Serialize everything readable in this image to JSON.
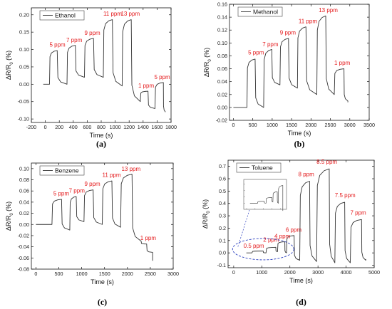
{
  "chart_data": [
    {
      "type": "line",
      "panel_label": "(a)",
      "ylabel": "ΔR/R",
      "ylabel_sub": "0",
      "ylabel_unit": " (%)",
      "xlabel": "Time (s)",
      "xlim": [
        -200,
        1800
      ],
      "ylim": [
        -0.11,
        0.22
      ],
      "xticks": [
        -200,
        0,
        200,
        400,
        600,
        800,
        1000,
        1200,
        1400,
        1600,
        1800
      ],
      "yticks": [
        -0.1,
        -0.05,
        0.0,
        0.05,
        0.1,
        0.15,
        0.2
      ],
      "ytick_labels": [
        "-0.10",
        "-0.05",
        "0.00",
        "0.05",
        "0.10",
        "0.15",
        "0.20"
      ],
      "legend": "Ethanol",
      "color": "#e41a1c",
      "series": [
        {
          "name": "Ethanol",
          "baseline_start": [
            -30,
            0.0
          ],
          "pulses": [
            {
              "on": 60,
              "off": 170,
              "peak": 0.097,
              "low": 0.0
            },
            {
              "on": 310,
              "off": 430,
              "peak": 0.112,
              "low": 0.02
            },
            {
              "on": 560,
              "off": 690,
              "peak": 0.132,
              "low": 0.02
            },
            {
              "on": 830,
              "off": 960,
              "peak": 0.186,
              "low": -0.005
            },
            {
              "on": 1100,
              "off": 1230,
              "peak": 0.186,
              "low": -0.05
            },
            {
              "on": 1360,
              "off": 1470,
              "peak": -0.02,
              "low": -0.07
            },
            {
              "on": 1570,
              "off": 1690,
              "peak": 0.005,
              "low": -0.08
            }
          ],
          "end": [
            1720,
            -0.08
          ]
        }
      ],
      "annotations": [
        {
          "text": "5 ppm",
          "x": 60,
          "y": 0.108
        },
        {
          "text": "7 ppm",
          "x": 300,
          "y": 0.122
        },
        {
          "text": "9 ppm",
          "x": 560,
          "y": 0.142
        },
        {
          "text": "11 ppm",
          "x": 830,
          "y": 0.197
        },
        {
          "text": "13 ppm",
          "x": 1080,
          "y": 0.197
        },
        {
          "text": "1 ppm",
          "x": 1330,
          "y": -0.01
        },
        {
          "text": "5 ppm",
          "x": 1560,
          "y": 0.015
        }
      ]
    },
    {
      "type": "line",
      "panel_label": "(b)",
      "ylabel": "ΔR/R",
      "ylabel_sub": "0",
      "ylabel_unit": " (%)",
      "xlabel": "Time (s)",
      "xlim": [
        -100,
        3500
      ],
      "ylim": [
        -0.02,
        0.16
      ],
      "xticks": [
        0,
        500,
        1000,
        1500,
        2000,
        2500,
        3000,
        3500
      ],
      "yticks": [
        -0.02,
        0.0,
        0.02,
        0.04,
        0.06,
        0.08,
        0.1,
        0.12,
        0.14,
        0.16
      ],
      "ytick_labels": [
        "-0.02",
        "0.00",
        "0.02",
        "0.04",
        "0.06",
        "0.08",
        "0.10",
        "0.12",
        "0.14",
        "0.16"
      ],
      "legend": "Methanol",
      "color": "#e41a1c",
      "series": [
        {
          "name": "Methanol",
          "baseline_start": [
            0,
            0.0
          ],
          "pulses": [
            {
              "on": 350,
              "off": 560,
              "peak": 0.075,
              "low": 0.0
            },
            {
              "on": 780,
              "off": 990,
              "peak": 0.09,
              "low": 0.035
            },
            {
              "on": 1200,
              "off": 1420,
              "peak": 0.107,
              "low": 0.03
            },
            {
              "on": 1650,
              "off": 1870,
              "peak": 0.125,
              "low": 0.02
            },
            {
              "on": 2150,
              "off": 2380,
              "peak": 0.142,
              "low": 0.02
            },
            {
              "on": 2600,
              "off": 2850,
              "peak": 0.06,
              "low": 0.01
            }
          ],
          "end": [
            2950,
            0.008
          ]
        }
      ],
      "annotations": [
        {
          "text": "5 ppm",
          "x": 380,
          "y": 0.082
        },
        {
          "text": "7 ppm",
          "x": 750,
          "y": 0.095
        },
        {
          "text": "9 ppm",
          "x": 1200,
          "y": 0.113
        },
        {
          "text": "11 ppm",
          "x": 1680,
          "y": 0.131
        },
        {
          "text": "13 ppm",
          "x": 2200,
          "y": 0.148
        },
        {
          "text": "1 ppm",
          "x": 2600,
          "y": 0.066
        }
      ]
    },
    {
      "type": "line",
      "panel_label": "(c)",
      "ylabel": "ΔR/R",
      "ylabel_sub": "0",
      "ylabel_unit": " (%)",
      "xlabel": "Time (s)",
      "xlim": [
        -100,
        3000
      ],
      "ylim": [
        -0.08,
        0.11
      ],
      "xticks": [
        0,
        500,
        1000,
        1500,
        2000,
        2500,
        3000
      ],
      "yticks": [
        -0.08,
        -0.06,
        -0.04,
        -0.02,
        0.0,
        0.02,
        0.04,
        0.06,
        0.08,
        0.1
      ],
      "ytick_labels": [
        "-0.08",
        "-0.06",
        "-0.04",
        "-0.02",
        "0.00",
        "0.02",
        "0.04",
        "0.06",
        "0.08",
        "0.10"
      ],
      "legend": "Benzene",
      "color": "#e41a1c",
      "series": [
        {
          "name": "Benzene",
          "baseline_start": [
            0,
            0.0
          ],
          "pulses": [
            {
              "on": 350,
              "off": 560,
              "peak": 0.045,
              "low": -0.01
            },
            {
              "on": 740,
              "off": 880,
              "peak": 0.05,
              "low": 0.005
            },
            {
              "on": 1050,
              "off": 1250,
              "peak": 0.062,
              "low": 0.0
            },
            {
              "on": 1450,
              "off": 1660,
              "peak": 0.078,
              "low": -0.005
            },
            {
              "on": 1850,
              "off": 2100,
              "peak": 0.09,
              "low": -0.03
            },
            {
              "on": 2300,
              "off": 2420,
              "peak": -0.035,
              "low": -0.05
            }
          ],
          "end": [
            2550,
            -0.065
          ]
        }
      ],
      "annotations": [
        {
          "text": "5 ppm",
          "x": 380,
          "y": 0.052
        },
        {
          "text": "7 ppm",
          "x": 720,
          "y": 0.057
        },
        {
          "text": "9 ppm",
          "x": 1060,
          "y": 0.069
        },
        {
          "text": "11 ppm",
          "x": 1450,
          "y": 0.085
        },
        {
          "text": "13 ppm",
          "x": 1870,
          "y": 0.096
        },
        {
          "text": "1 ppm",
          "x": 2280,
          "y": -0.028
        }
      ]
    },
    {
      "type": "line",
      "panel_label": "(d)",
      "ylabel": "ΔR/R",
      "ylabel_sub": "0",
      "ylabel_unit": " (%)",
      "xlabel": "Time (s)",
      "xlim": [
        -200,
        5000
      ],
      "ylim": [
        -0.12,
        0.75
      ],
      "xticks": [
        0,
        1000,
        2000,
        3000,
        4000,
        5000
      ],
      "yticks": [
        -0.1,
        0.0,
        0.1,
        0.2,
        0.3,
        0.4,
        0.5,
        0.6,
        0.7
      ],
      "ytick_labels": [
        "-0.1",
        "0.0",
        "0.1",
        "0.2",
        "0.3",
        "0.4",
        "0.5",
        "0.6",
        "0.7"
      ],
      "legend": "Toluene",
      "color": "#e41a1c",
      "series": [
        {
          "name": "Toluene",
          "baseline_start": [
            450,
            0.0
          ],
          "pulses": [
            {
              "on": 650,
              "off": 1050,
              "peak": 0.015,
              "low": 0.0
            },
            {
              "on": 1150,
              "off": 1500,
              "peak": 0.045,
              "low": 0.01
            },
            {
              "on": 1560,
              "off": 1820,
              "peak": 0.09,
              "low": 0.0
            },
            {
              "on": 1880,
              "off": 2150,
              "peak": 0.14,
              "low": -0.06
            },
            {
              "on": 2350,
              "off": 2700,
              "peak": 0.58,
              "low": -0.07
            },
            {
              "on": 2950,
              "off": 3400,
              "peak": 0.68,
              "low": -0.08
            },
            {
              "on": 3600,
              "off": 3950,
              "peak": 0.41,
              "low": -0.08
            },
            {
              "on": 4150,
              "off": 4550,
              "peak": 0.27,
              "low": -0.06
            }
          ],
          "end": [
            4700,
            -0.05
          ]
        }
      ],
      "annotations": [
        {
          "text": "0.5 ppm",
          "x": 350,
          "y": 0.04
        },
        {
          "text": "2 ppm",
          "x": 1050,
          "y": 0.09
        },
        {
          "text": "4 ppm",
          "x": 1450,
          "y": 0.12
        },
        {
          "text": "6 ppm",
          "x": 1850,
          "y": 0.17
        },
        {
          "text": "8 ppm",
          "x": 2300,
          "y": 0.62
        },
        {
          "text": "8.5 ppm",
          "x": 2950,
          "y": 0.72
        },
        {
          "text": "7.5 ppm",
          "x": 3600,
          "y": 0.45
        },
        {
          "text": "7 ppm",
          "x": 4150,
          "y": 0.31
        }
      ]
    }
  ],
  "ylabel_symbol": "ΔR/R",
  "colors": {
    "trace": "#333333",
    "annotation": "#e41a1c",
    "highlight": "#2b3fbf"
  }
}
